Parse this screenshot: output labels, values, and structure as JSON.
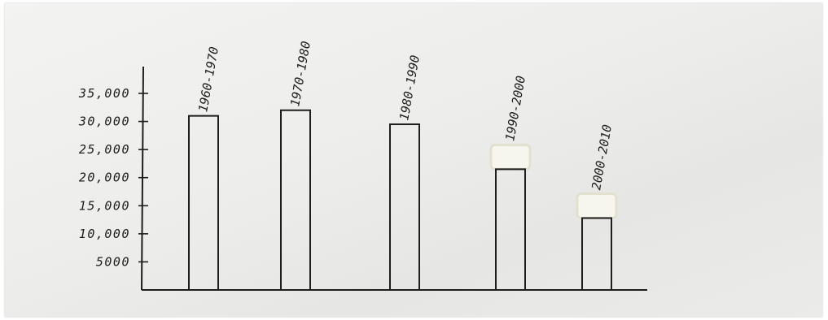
{
  "chart_data": {
    "type": "bar",
    "categories": [
      "1960-1970",
      "1970-1980",
      "1980-1990",
      "1990-2000",
      "2000-2010"
    ],
    "values": [
      31000,
      32000,
      29500,
      21500,
      12800
    ],
    "ytick_labels": [
      "5000",
      "10,000",
      "15,000",
      "20,000",
      "25,000",
      "30,000",
      "35,000"
    ],
    "ytick_values": [
      5000,
      10000,
      15000,
      20000,
      25000,
      30000,
      35000
    ],
    "ylim": [
      0,
      37000
    ],
    "title": "",
    "xlabel": "",
    "ylabel": "",
    "grid": false,
    "legend": "none",
    "colors": {
      "paper": "#ecebe9",
      "ink": "#1e1e1e",
      "correction_fluid": "#f7f6ee"
    }
  }
}
